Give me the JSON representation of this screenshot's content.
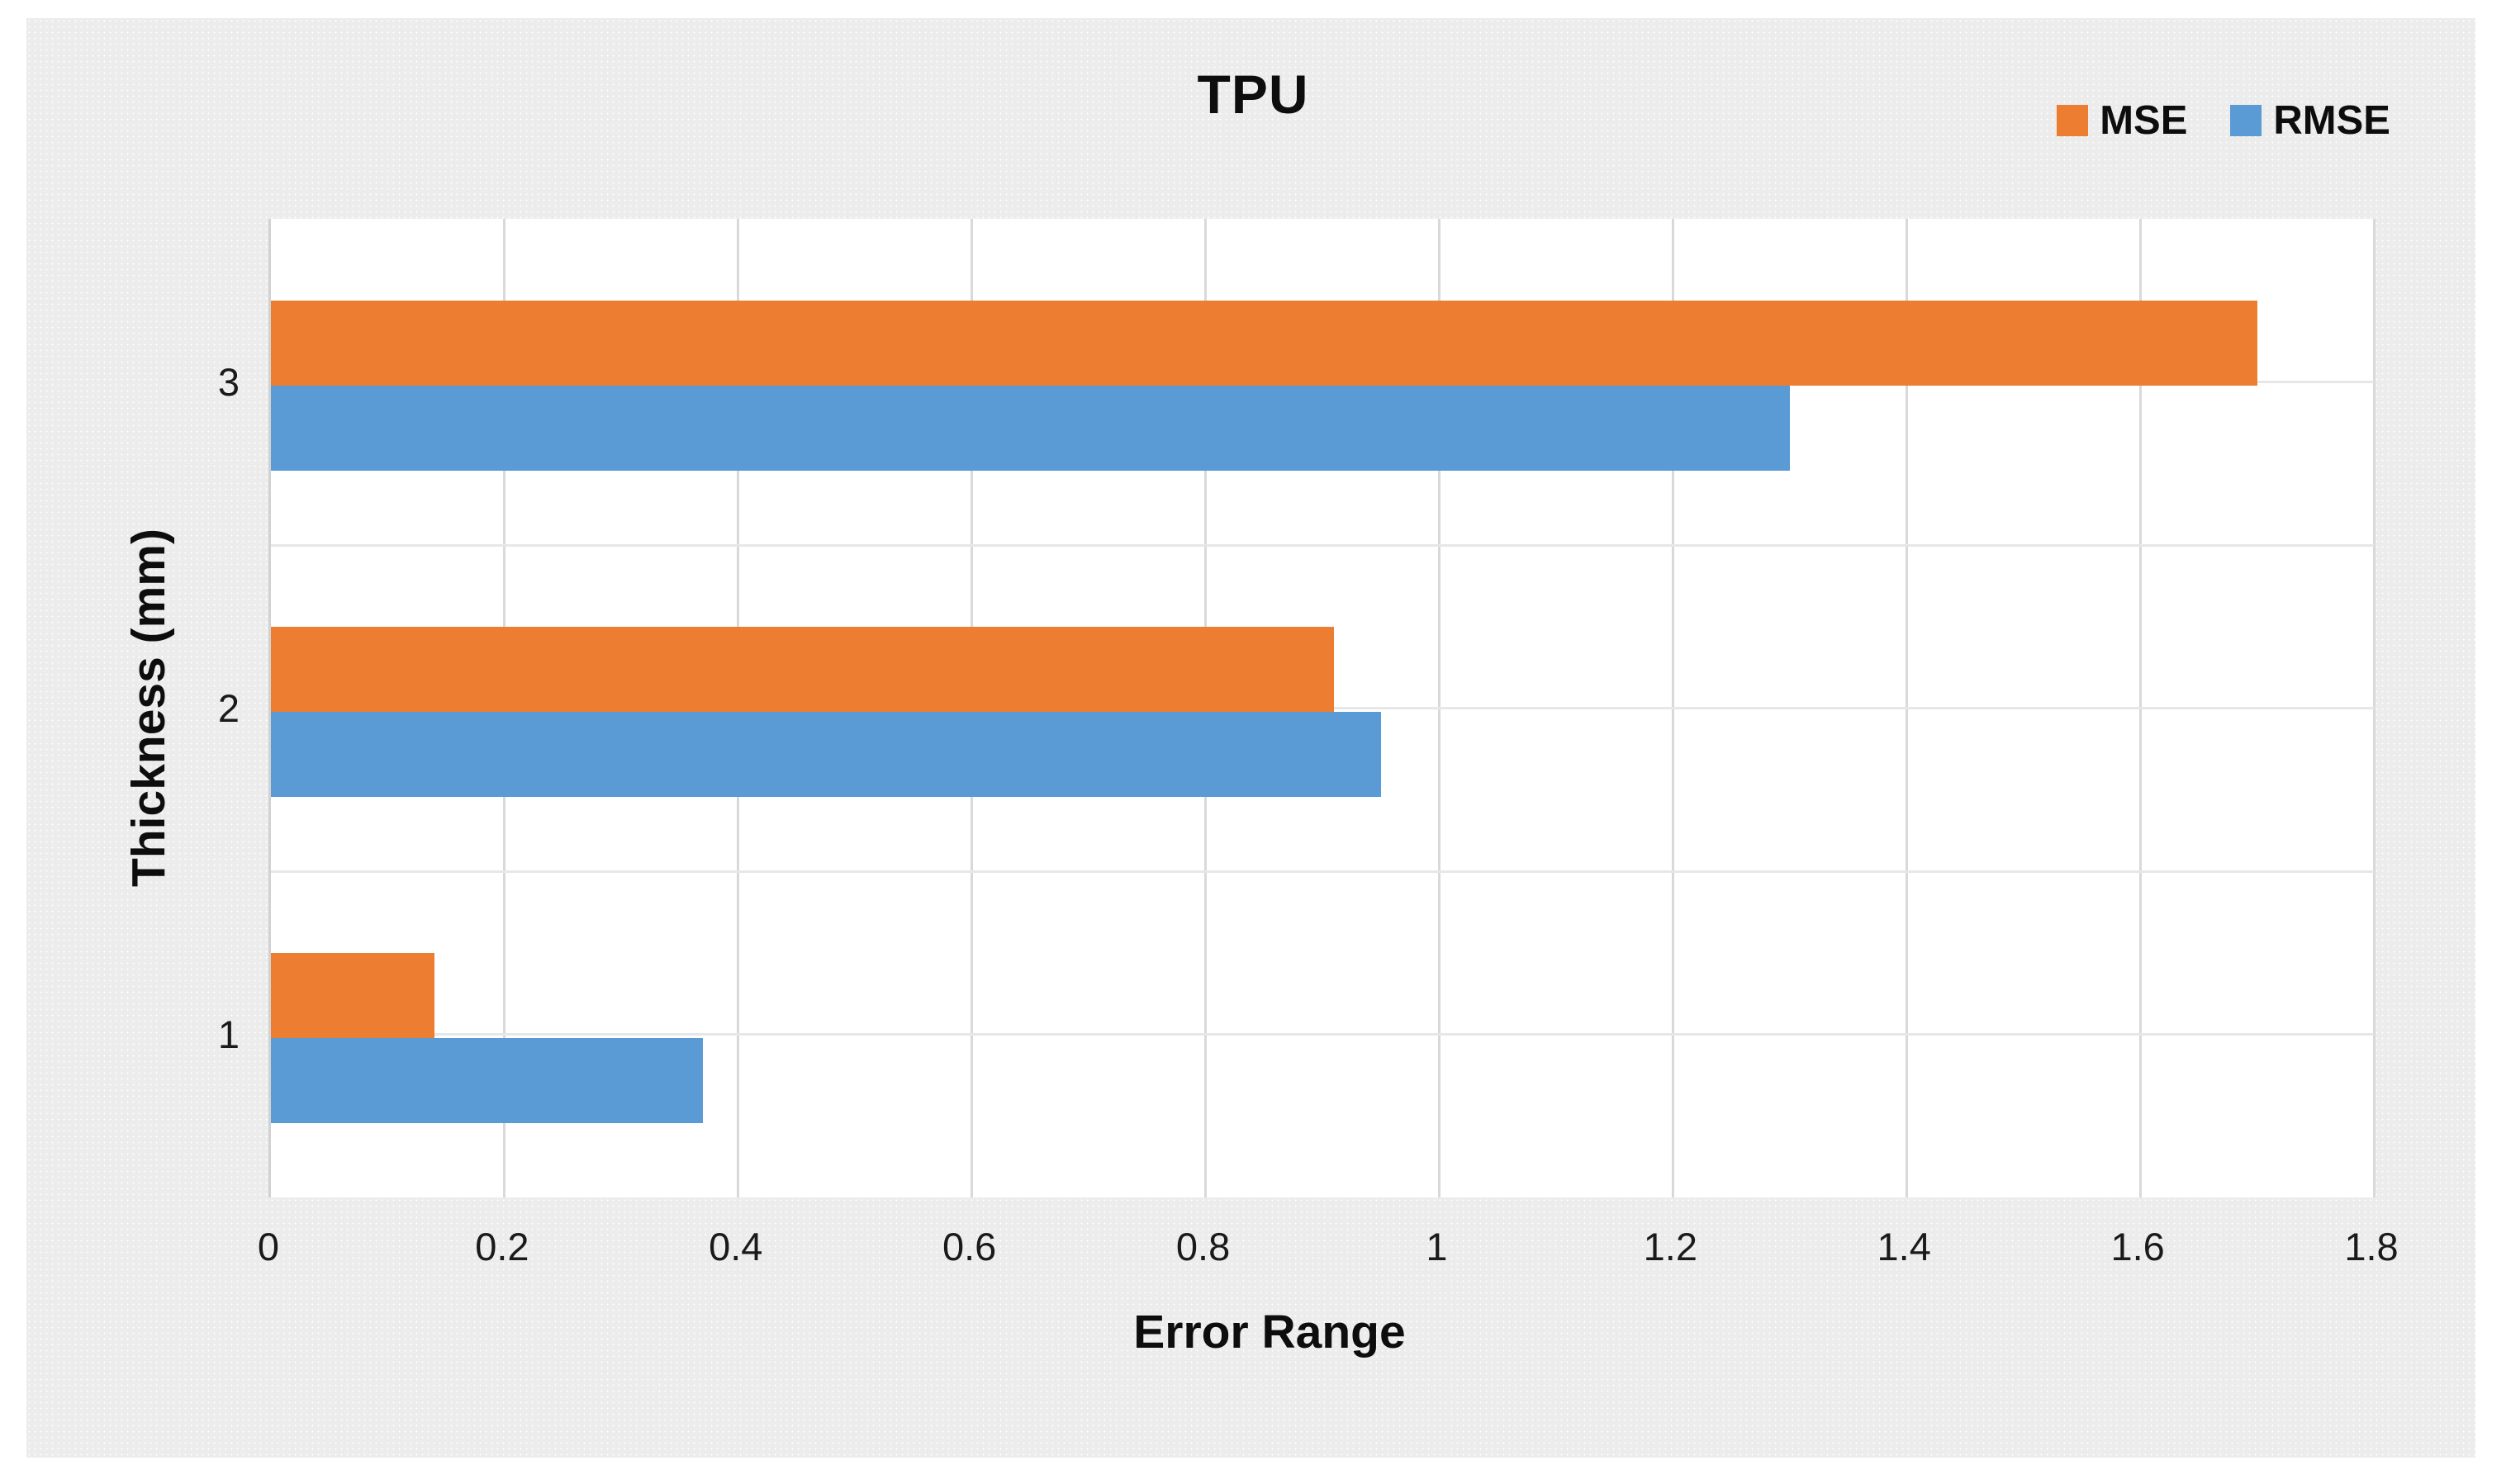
{
  "chart_data": {
    "type": "bar",
    "orientation": "horizontal",
    "title": "TPU",
    "xlabel": "Error Range",
    "ylabel": "Thickness (mm)",
    "categories": [
      "1",
      "2",
      "3"
    ],
    "series": [
      {
        "name": "MSE",
        "color": "#ED7D31",
        "values": [
          0.14,
          0.91,
          1.7
        ]
      },
      {
        "name": "RMSE",
        "color": "#5B9BD5",
        "values": [
          0.37,
          0.95,
          1.3
        ]
      }
    ],
    "xlim": [
      0,
      1.8
    ],
    "xtick_labels": [
      "0",
      "0.2",
      "0.4",
      "0.6",
      "0.8",
      "1",
      "1.2",
      "1.4",
      "1.6",
      "1.8"
    ],
    "xtick_values": [
      0,
      0.2,
      0.4,
      0.6,
      0.8,
      1.0,
      1.2,
      1.4,
      1.6,
      1.8
    ],
    "grid": true,
    "legend_position": "top-right"
  },
  "colors": {
    "mse": "#ED7D31",
    "rmse": "#5B9BD5",
    "gridline_vertical": "#d9d9d9",
    "gridline_horizontal": "#e7e7e7",
    "chart_background": "#ececec",
    "plot_background": "#ffffff",
    "text": "#0d0d0d"
  }
}
